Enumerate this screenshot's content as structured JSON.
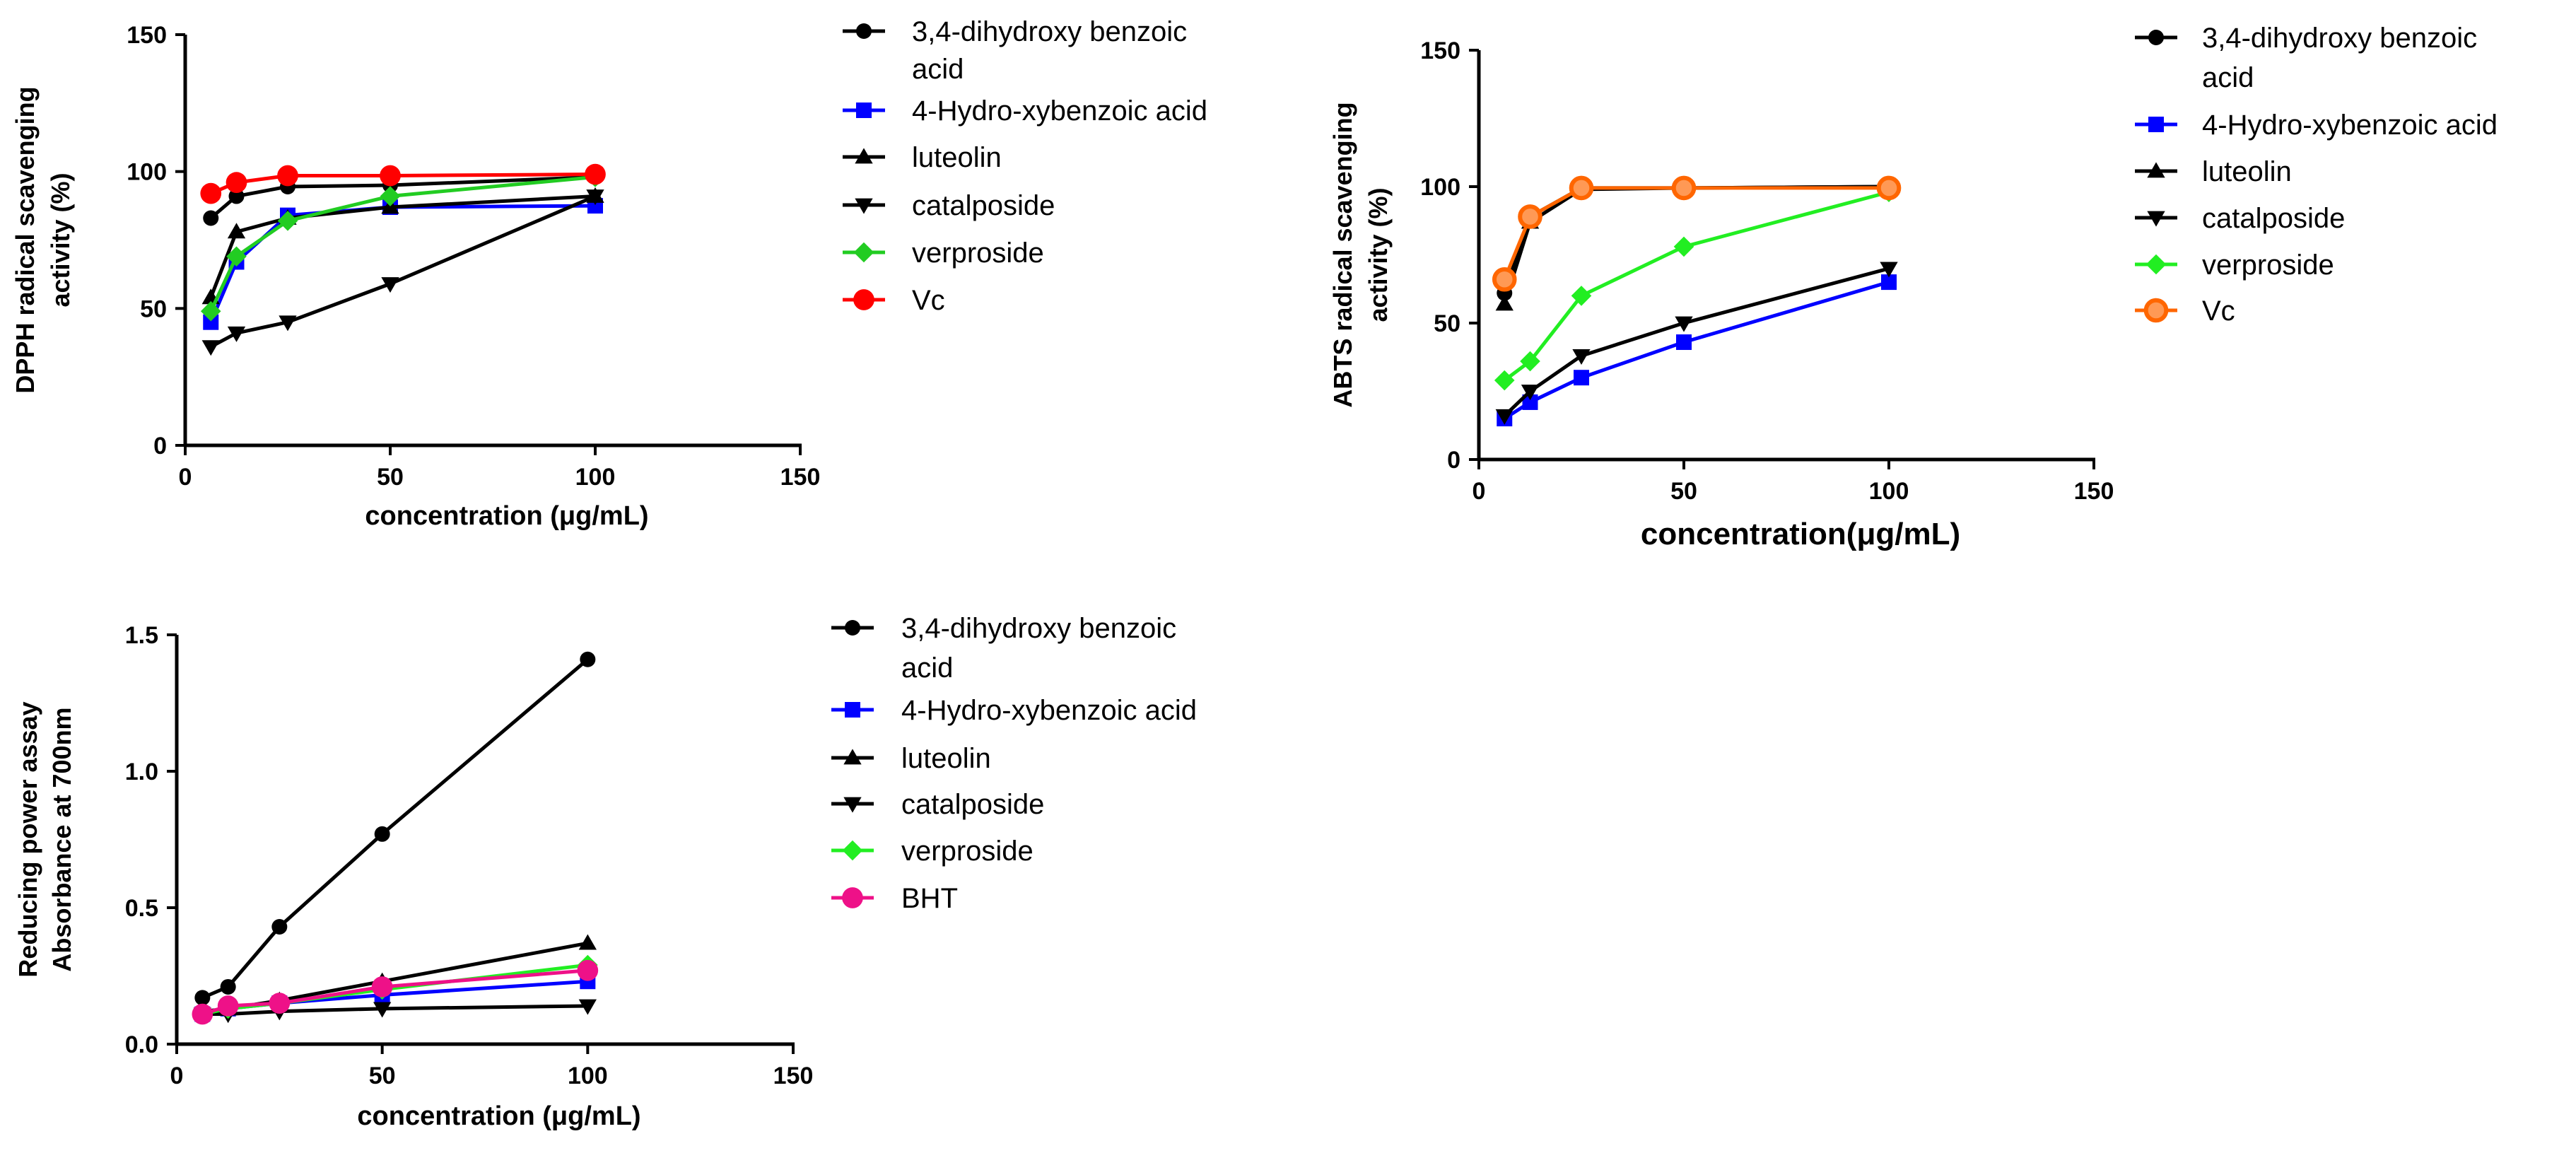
{
  "chart_data": [
    {
      "type": "line",
      "panel": "dpph",
      "title": "",
      "xlabel": "concentration (μg/mL)",
      "ylabel": [
        "DPPH radical scavenging",
        "activity (%)"
      ],
      "xlim": [
        0,
        150
      ],
      "ylim": [
        0,
        150
      ],
      "xticks": [
        "0",
        "50",
        "100",
        "150"
      ],
      "yticks": [
        "0",
        "50",
        "100",
        "150"
      ],
      "legend_position": "right",
      "grid": false,
      "series": [
        {
          "name": "3,4-dihydroxy benzoic acid",
          "color": "#000000",
          "marker": "circle",
          "x": [
            6.25,
            12.5,
            25,
            50,
            100
          ],
          "y": [
            83,
            91,
            94.5,
            95,
            98
          ]
        },
        {
          "name": "4-Hydro-xybenzoic acid",
          "color": "#0000ff",
          "marker": "square",
          "x": [
            6.25,
            12.5,
            25,
            50,
            100
          ],
          "y": [
            45,
            67,
            84,
            87,
            87.5
          ]
        },
        {
          "name": "luteolin",
          "color": "#000000",
          "marker": "triangle-up",
          "x": [
            6.25,
            12.5,
            25,
            50,
            100
          ],
          "y": [
            54,
            78,
            83,
            87,
            91
          ]
        },
        {
          "name": "catalposide",
          "color": "#000000",
          "marker": "triangle-down",
          "x": [
            6.25,
            12.5,
            25,
            50,
            100
          ],
          "y": [
            36,
            41,
            45,
            59,
            91
          ]
        },
        {
          "name": "verproside",
          "color": "#22cc22",
          "marker": "diamond",
          "x": [
            6.25,
            12.5,
            25,
            50,
            100
          ],
          "y": [
            49,
            69,
            82,
            91,
            98
          ]
        },
        {
          "name": "Vc",
          "color": "#ff0000",
          "marker": "circle-large",
          "x": [
            6.25,
            12.5,
            25,
            50,
            100
          ],
          "y": [
            92,
            96,
            98.5,
            98.5,
            99
          ]
        }
      ]
    },
    {
      "type": "line",
      "panel": "abts",
      "title": "",
      "xlabel": "concentration(μg/mL)",
      "ylabel": [
        "ABTS radical scavenging",
        "activity (%)"
      ],
      "xlim": [
        0,
        150
      ],
      "ylim": [
        0,
        150
      ],
      "xticks": [
        "0",
        "50",
        "100",
        "150"
      ],
      "yticks": [
        "0",
        "50",
        "100",
        "150"
      ],
      "legend_position": "right",
      "grid": false,
      "series": [
        {
          "name": "3,4-dihydroxy benzoic acid",
          "color": "#000000",
          "marker": "circle",
          "x": [
            6.25,
            12.5,
            25,
            50,
            100
          ],
          "y": [
            61,
            89,
            99.5,
            99.5,
            100
          ]
        },
        {
          "name": "4-Hydro-xybenzoic acid",
          "color": "#0000ff",
          "marker": "square",
          "x": [
            6.25,
            12.5,
            25,
            50,
            100
          ],
          "y": [
            15,
            21,
            30,
            43,
            65
          ]
        },
        {
          "name": "luteolin",
          "color": "#000000",
          "marker": "triangle-up",
          "x": [
            6.25,
            12.5,
            25,
            50,
            100
          ],
          "y": [
            57,
            87,
            99,
            99.5,
            100
          ]
        },
        {
          "name": "catalposide",
          "color": "#000000",
          "marker": "triangle-down",
          "x": [
            6.25,
            12.5,
            25,
            50,
            100
          ],
          "y": [
            16,
            25,
            38,
            50,
            70
          ]
        },
        {
          "name": "verproside",
          "color": "#22ee22",
          "marker": "diamond",
          "x": [
            6.25,
            12.5,
            25,
            50,
            100
          ],
          "y": [
            29,
            36,
            60,
            78,
            98
          ]
        },
        {
          "name": "Vc",
          "color": "#ff6600",
          "marker": "circle-ring",
          "x": [
            6.25,
            12.5,
            25,
            50,
            100
          ],
          "y": [
            66,
            89,
            99.5,
            99.5,
            99.5
          ]
        }
      ]
    },
    {
      "type": "line",
      "panel": "reducing",
      "title": "",
      "xlabel": "concentration (μg/mL)",
      "ylabel": [
        "Reducing power assay",
        "Absorbance  at 700nm"
      ],
      "xlim": [
        0,
        150
      ],
      "ylim": [
        0,
        1.5
      ],
      "xticks": [
        "0",
        "50",
        "100",
        "150"
      ],
      "yticks": [
        "0.0",
        "0.5",
        "1.0",
        "1.5"
      ],
      "legend_position": "right",
      "grid": false,
      "series": [
        {
          "name": "3,4-dihydroxy benzoic acid",
          "color": "#000000",
          "marker": "circle",
          "x": [
            6.25,
            12.5,
            25,
            50,
            100
          ],
          "y": [
            0.17,
            0.21,
            0.43,
            0.77,
            1.41
          ]
        },
        {
          "name": "4-Hydro-xybenzoic acid",
          "color": "#0000ff",
          "marker": "square",
          "x": [
            6.25,
            12.5,
            25,
            50,
            100
          ],
          "y": [
            0.11,
            0.13,
            0.15,
            0.18,
            0.23
          ]
        },
        {
          "name": " luteolin",
          "color": "#000000",
          "marker": "triangle-up",
          "x": [
            6.25,
            12.5,
            25,
            50,
            100
          ],
          "y": [
            0.12,
            0.13,
            0.16,
            0.23,
            0.37
          ]
        },
        {
          "name": "catalposide",
          "color": "#000000",
          "marker": "triangle-down",
          "x": [
            6.25,
            12.5,
            25,
            50,
            100
          ],
          "y": [
            0.11,
            0.11,
            0.12,
            0.13,
            0.14
          ]
        },
        {
          "name": "verproside",
          "color": "#22ee22",
          "marker": "diamond",
          "x": [
            6.25,
            12.5,
            25,
            50,
            100
          ],
          "y": [
            0.11,
            0.13,
            0.15,
            0.2,
            0.29
          ]
        },
        {
          "name": "BHT",
          "color": "#ee1188",
          "marker": "circle-large",
          "x": [
            6.25,
            12.5,
            25,
            50,
            100
          ],
          "y": [
            0.11,
            0.14,
            0.15,
            0.21,
            0.27
          ]
        }
      ]
    }
  ]
}
